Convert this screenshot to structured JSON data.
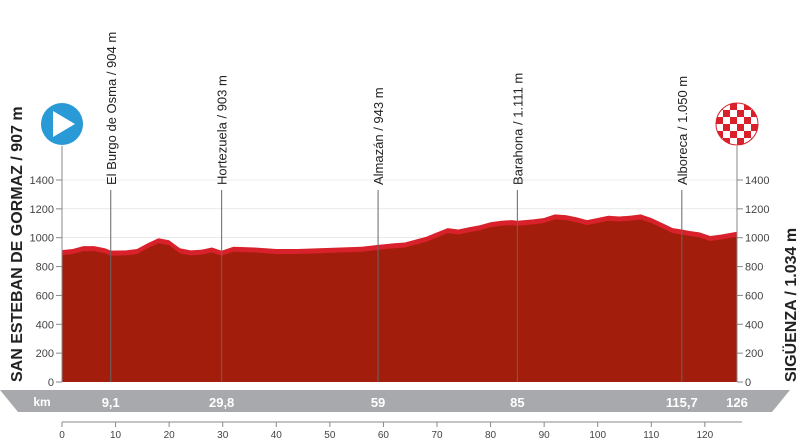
{
  "chart_data": {
    "type": "area",
    "title": "",
    "xlabel": "km",
    "ylabel": "",
    "xlim": [
      0,
      126
    ],
    "ylim": [
      0,
      1400
    ],
    "yticks": [
      0,
      200,
      400,
      600,
      800,
      1000,
      1200,
      1400
    ],
    "xticks": [
      0,
      10,
      20,
      30,
      40,
      50,
      60,
      70,
      80,
      90,
      100,
      110,
      120
    ],
    "start": {
      "label": "SAN ESTEBAN DE GORMAZ / 907 m",
      "km": 0,
      "elevation": 907
    },
    "finish": {
      "label": "SIGÜENZA / 1.034 m",
      "km": 126,
      "elevation": 1034
    },
    "distance_label": "km",
    "waypoints": [
      {
        "km": 9.1,
        "km_label": "9,1",
        "label": "El Burgo de Osma / 904 m",
        "elevation": 904
      },
      {
        "km": 29.8,
        "km_label": "29,8",
        "label": "Hortezuela / 903 m",
        "elevation": 903
      },
      {
        "km": 59,
        "km_label": "59",
        "label": "Almazán / 943 m",
        "elevation": 943
      },
      {
        "km": 85,
        "km_label": "85",
        "label": "Barahona / 1.111 m",
        "elevation": 1111
      },
      {
        "km": 115.7,
        "km_label": "115,7",
        "label": "Alboreca / 1.050 m",
        "elevation": 1050
      },
      {
        "km": 126,
        "km_label": "126",
        "label": "",
        "elevation": 1034
      }
    ],
    "x": [
      0,
      2,
      4,
      6,
      8,
      9.1,
      12,
      14,
      16,
      18,
      20,
      22,
      24,
      26,
      28,
      29.8,
      32,
      36,
      40,
      44,
      48,
      52,
      56,
      59,
      62,
      64,
      66,
      68,
      70,
      72,
      74,
      76,
      78,
      80,
      82,
      84,
      85,
      88,
      90,
      92,
      94,
      96,
      98,
      100,
      102,
      104,
      106,
      108,
      110,
      112,
      114,
      115.7,
      117,
      119,
      121,
      123,
      126
    ],
    "y": [
      907,
      915,
      935,
      935,
      920,
      904,
      905,
      915,
      955,
      990,
      975,
      920,
      905,
      910,
      925,
      903,
      930,
      925,
      915,
      915,
      920,
      925,
      930,
      943,
      955,
      960,
      980,
      1000,
      1030,
      1060,
      1050,
      1065,
      1080,
      1100,
      1110,
      1115,
      1111,
      1120,
      1130,
      1155,
      1150,
      1135,
      1115,
      1130,
      1145,
      1140,
      1145,
      1155,
      1130,
      1095,
      1060,
      1050,
      1040,
      1030,
      1005,
      1015,
      1034
    ],
    "colors": {
      "fill": "#a31d0c",
      "top_strip": "#d8212b",
      "axis_bar": "#a7a9ac",
      "start_marker": "#2a9ad6"
    }
  }
}
